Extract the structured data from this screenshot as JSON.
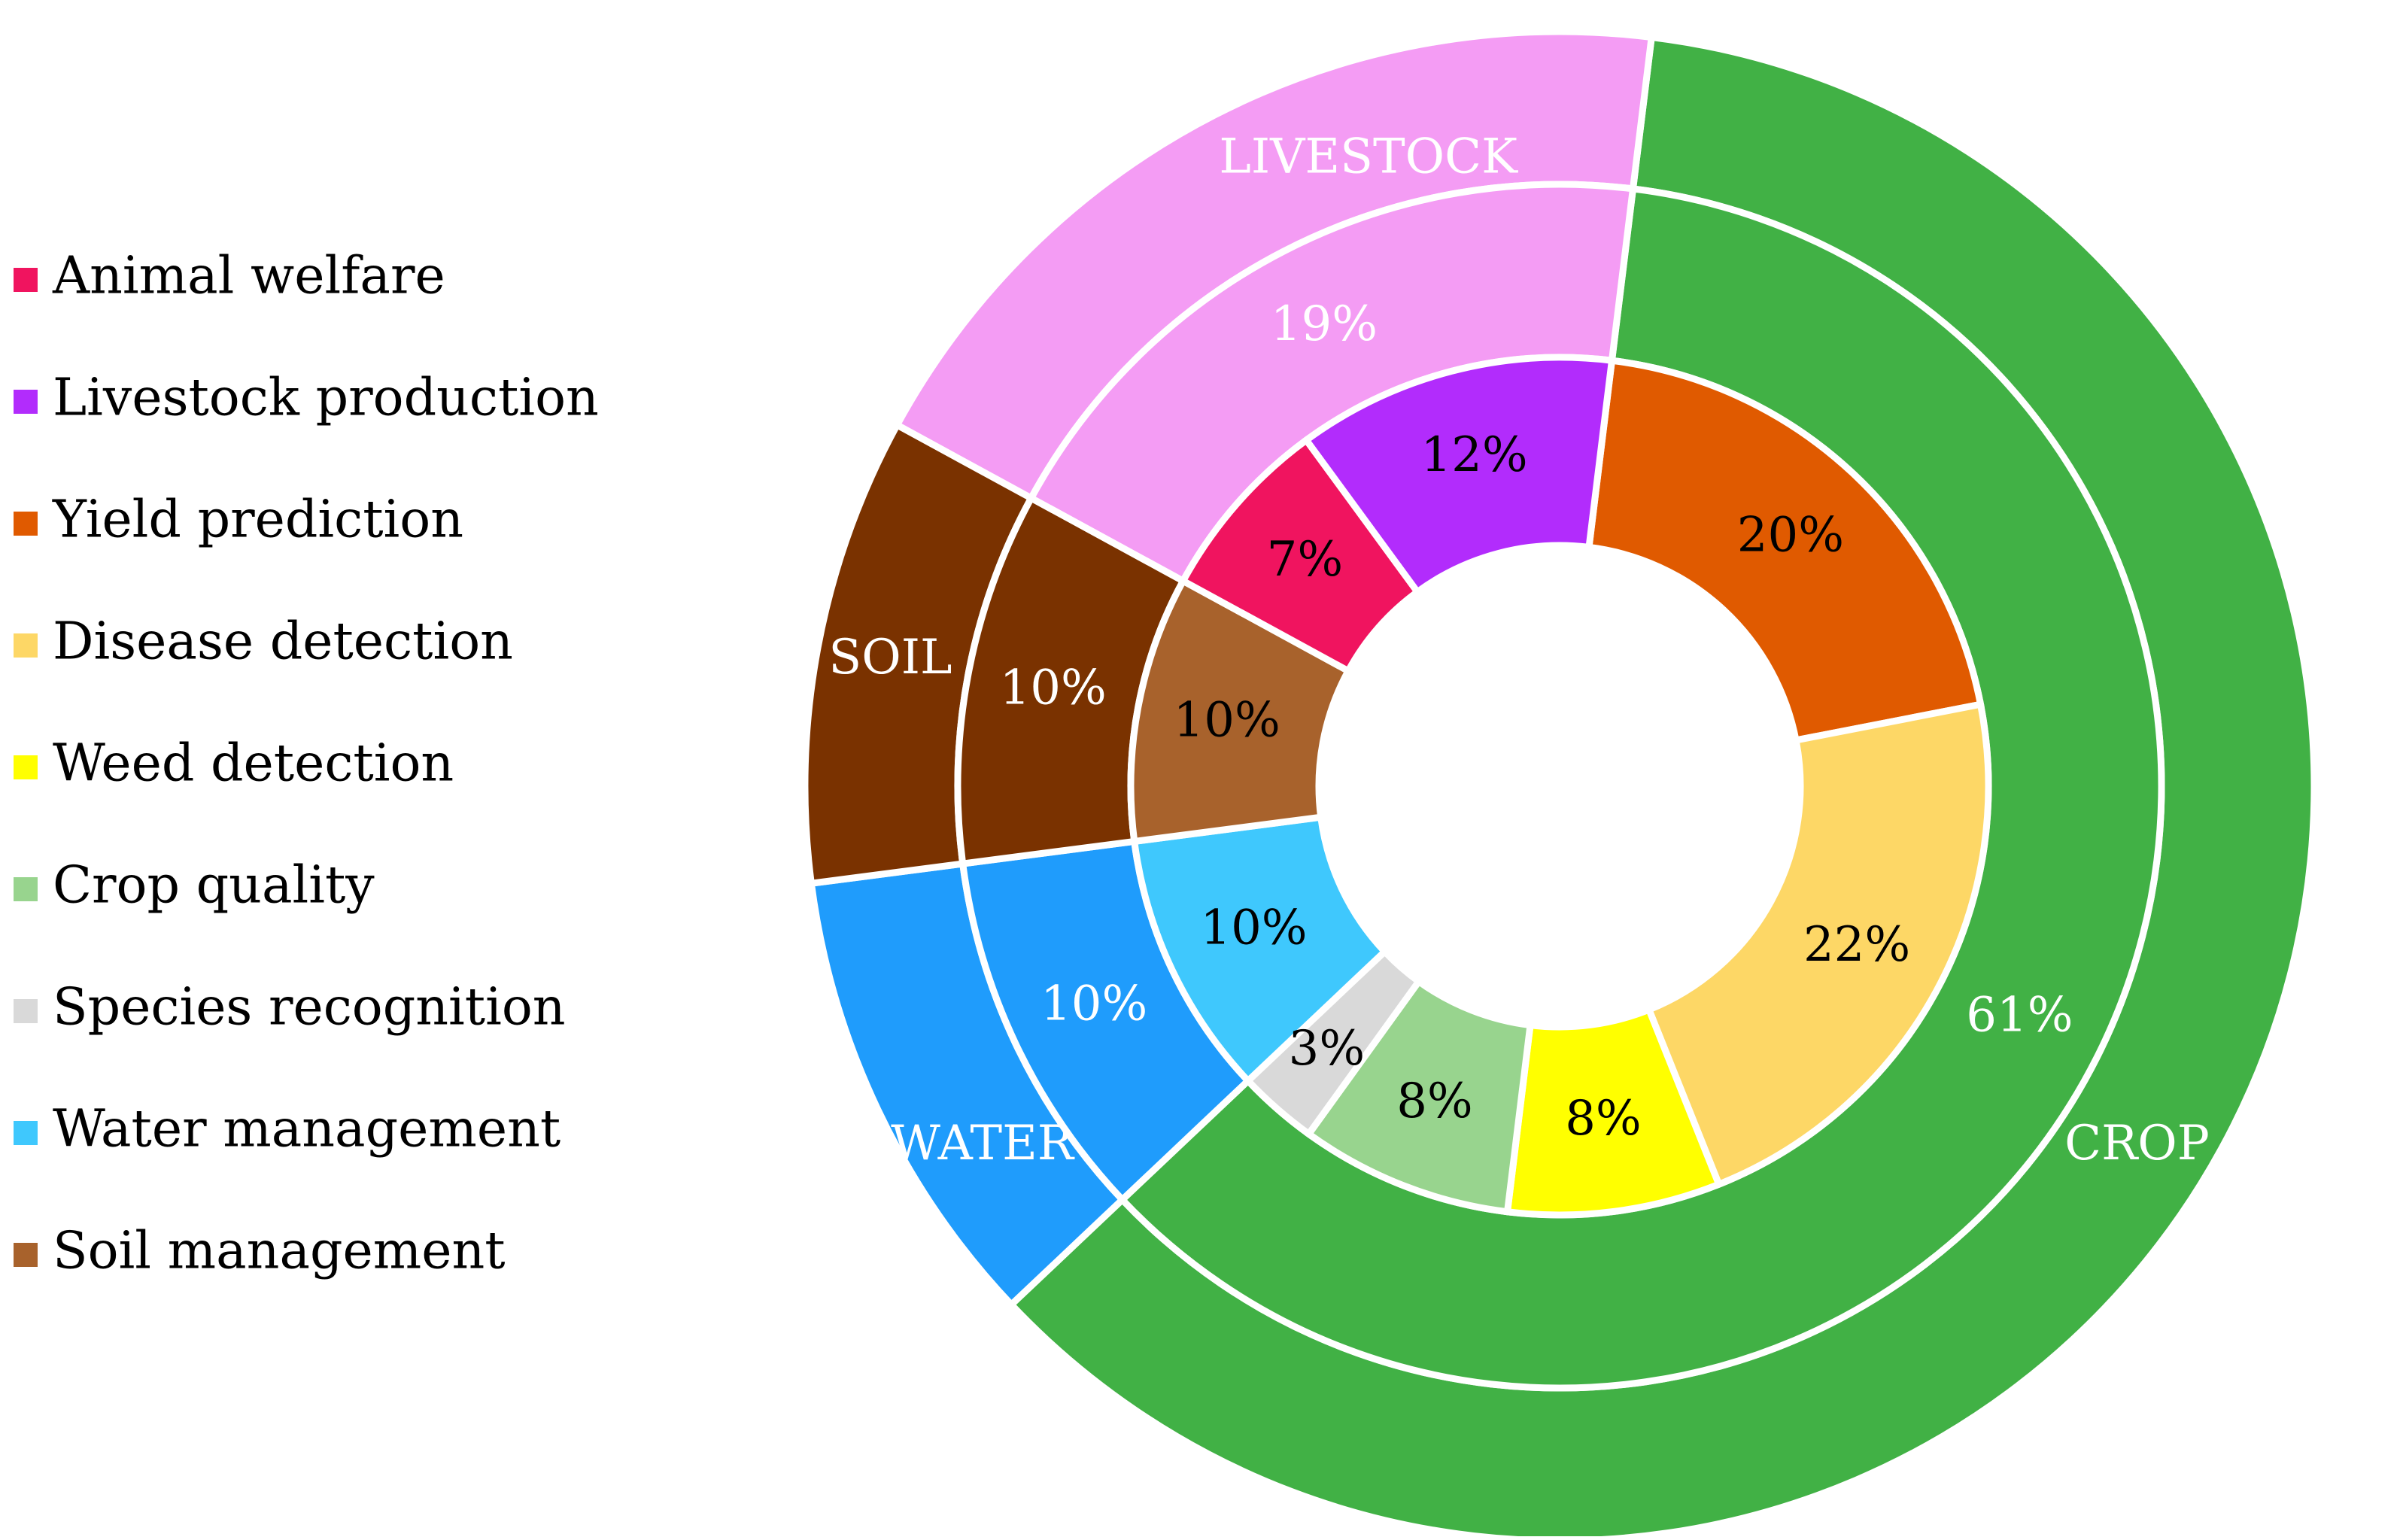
{
  "chart_data": {
    "type": "pie",
    "variant": "nested-donut",
    "title": "",
    "legend_position": "left",
    "categories": [
      {
        "name": "LIVESTOCK",
        "color": "#f49cf4"
      },
      {
        "name": "SOIL",
        "color": "#7a3200"
      },
      {
        "name": "WATER",
        "color": "#1f9cfc"
      },
      {
        "name": "CROP",
        "color": "#41b145"
      }
    ],
    "category_shares": [
      {
        "label": "19%",
        "value": 19,
        "category": "LIVESTOCK"
      },
      {
        "label": "10%",
        "value": 10,
        "category": "SOIL"
      },
      {
        "label": "10%",
        "value": 10,
        "category": "WATER"
      },
      {
        "label": "61%",
        "value": 61,
        "category": "CROP"
      }
    ],
    "subcategories": [
      {
        "name": "Animal welfare",
        "value": 7,
        "label": "7%",
        "color": "#f0145f",
        "category": "LIVESTOCK"
      },
      {
        "name": "Livestock production",
        "value": 12,
        "label": "12%",
        "color": "#b22cfc",
        "category": "LIVESTOCK"
      },
      {
        "name": "Yield prediction",
        "value": 20,
        "label": "20%",
        "color": "#e05a00",
        "category": "CROP"
      },
      {
        "name": "Disease detection",
        "value": 22,
        "label": "22%",
        "color": "#fdd766",
        "category": "CROP"
      },
      {
        "name": "Weed detection",
        "value": 8,
        "label": "8%",
        "color": "#ffff00",
        "category": "CROP"
      },
      {
        "name": "Crop quality",
        "value": 8,
        "label": "8%",
        "color": "#98d48e",
        "category": "CROP"
      },
      {
        "name": "Species recognition",
        "value": 3,
        "label": "3%",
        "color": "#d9d9d9",
        "category": "CROP"
      },
      {
        "name": "Water management",
        "value": 10,
        "label": "10%",
        "color": "#3fc8fd",
        "category": "WATER"
      },
      {
        "name": "Soil management",
        "value": 10,
        "label": "10%",
        "color": "#a8622c",
        "category": "SOIL"
      }
    ],
    "legend": [
      "Animal welfare",
      "Livestock production",
      "Yield prediction",
      "Disease detection",
      "Weed detection",
      "Crop quality",
      "Species recognition",
      "Water management",
      "Soil management"
    ]
  }
}
